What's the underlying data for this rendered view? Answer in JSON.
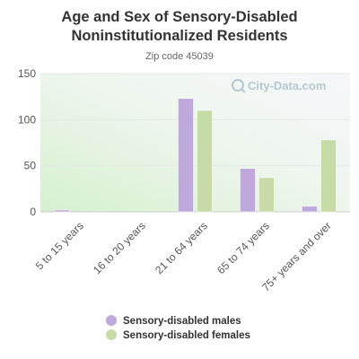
{
  "chart_data": {
    "type": "bar",
    "title_line1": "Age and Sex of Sensory-Disabled",
    "title_line2": "Noninstitutionalized Residents",
    "subtitle": "Zip code 45039",
    "categories": [
      "5 to 15 years",
      "16 to 20 years",
      "21 to 64 years",
      "65 to 74 years",
      "75+ years and over"
    ],
    "series": [
      {
        "name": "Sensory-disabled males",
        "color": "#bfa8dc",
        "values": [
          2,
          0,
          123,
          47,
          6
        ]
      },
      {
        "name": "Sensory-disabled females",
        "color": "#c7dba7",
        "values": [
          0,
          0,
          110,
          37,
          78
        ]
      }
    ],
    "yticks": [
      0,
      50,
      100,
      150
    ],
    "ylim": [
      0,
      150
    ],
    "grid": true,
    "legend_position": "bottom",
    "watermark": "City-Data.com"
  }
}
